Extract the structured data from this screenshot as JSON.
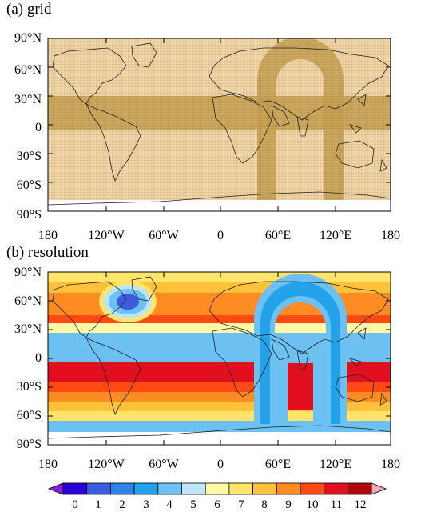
{
  "panels": [
    {
      "title": "(a) grid",
      "lat_labels": [
        "90°N",
        "60°N",
        "30°N",
        "0",
        "30°S",
        "60°S",
        "90°S"
      ],
      "lon_labels": [
        "180",
        "120°W",
        "60°W",
        "0",
        "60°E",
        "120°E",
        "180"
      ]
    },
    {
      "title": "(b) resolution",
      "lat_labels": [
        "90°N",
        "60°N",
        "30°N",
        "0",
        "30°S",
        "60°S",
        "90°S"
      ],
      "lon_labels": [
        "180",
        "120°W",
        "60°W",
        "0",
        "60°E",
        "120°E",
        "180"
      ]
    }
  ],
  "colorbar": {
    "labels": [
      "0",
      "1",
      "2",
      "3",
      "4",
      "5",
      "6",
      "7",
      "8",
      "9",
      "10",
      "11",
      "12"
    ],
    "colors": [
      "#2a00d8",
      "#3c5ce0",
      "#2e83e6",
      "#23a2ea",
      "#6cc0f2",
      "#bfe4f8",
      "#fff8a4",
      "#ffe66a",
      "#ffc03a",
      "#ff8c22",
      "#ff4a14",
      "#e0101e",
      "#b0080a"
    ],
    "under_color": "#8a1ee0",
    "over_color": "#f6a8b4"
  },
  "colors": {
    "grid_band": "#c8a45a",
    "grid_bg": "#ecd6a6",
    "coast": "#222222"
  }
}
